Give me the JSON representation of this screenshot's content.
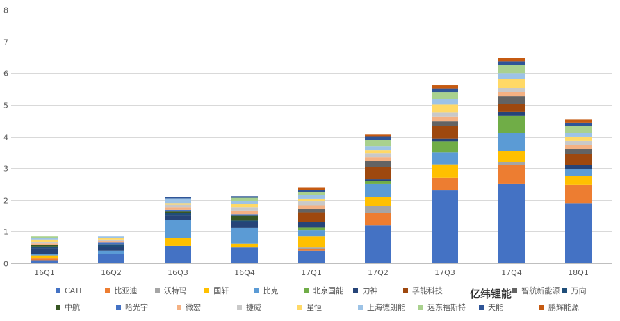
{
  "chart_data": {
    "type": "bar",
    "stacked": true,
    "categories": [
      "16Q1",
      "16Q2",
      "16Q3",
      "16Q4",
      "17Q1",
      "17Q2",
      "17Q3",
      "17Q4",
      "18Q1"
    ],
    "ylim": [
      0,
      8
    ],
    "yticks": [
      0,
      1,
      2,
      3,
      4,
      5,
      6,
      7,
      8
    ],
    "grid": true,
    "legend_position": "bottom",
    "series": [
      {
        "name": "CATL",
        "color": "#4472C4",
        "values": [
          0.1,
          0.3,
          0.55,
          0.5,
          0.4,
          1.2,
          2.3,
          2.5,
          1.9
        ]
      },
      {
        "name": "比亚迪",
        "color": "#ED7D31",
        "values": [
          0.05,
          0.0,
          0.0,
          0.0,
          0.05,
          0.4,
          0.4,
          0.6,
          0.58
        ]
      },
      {
        "name": "沃特玛",
        "color": "#A5A5A5",
        "values": [
          0.0,
          0.0,
          0.0,
          0.0,
          0.05,
          0.2,
          0.0,
          0.1,
          0.0
        ]
      },
      {
        "name": "国轩",
        "color": "#FFC000",
        "values": [
          0.1,
          0.0,
          0.26,
          0.12,
          0.35,
          0.3,
          0.42,
          0.35,
          0.28
        ]
      },
      {
        "name": "比克",
        "color": "#5B9BD5",
        "values": [
          0.05,
          0.1,
          0.55,
          0.5,
          0.2,
          0.4,
          0.38,
          0.55,
          0.22
        ]
      },
      {
        "name": "北京国能",
        "color": "#70AD47",
        "values": [
          0.0,
          0.0,
          0.0,
          0.0,
          0.08,
          0.1,
          0.35,
          0.55,
          0.0
        ]
      },
      {
        "name": "力神",
        "color": "#264478",
        "values": [
          0.18,
          0.12,
          0.15,
          0.18,
          0.18,
          0.05,
          0.08,
          0.13,
          0.13
        ]
      },
      {
        "name": "孚能科技",
        "color": "#9E480E",
        "values": [
          0.0,
          0.0,
          0.0,
          0.0,
          0.3,
          0.38,
          0.4,
          0.25,
          0.35
        ]
      },
      {
        "name": "智航新能源",
        "color": "#636363",
        "values": [
          0.0,
          0.0,
          0.0,
          0.0,
          0.1,
          0.2,
          0.16,
          0.25,
          0.15
        ]
      },
      {
        "name": "万向",
        "color": "#1F4E79",
        "values": [
          0.05,
          0.05,
          0.08,
          0.05,
          0.0,
          0.0,
          0.0,
          0.0,
          0.0
        ]
      },
      {
        "name": "中航",
        "color": "#375623",
        "values": [
          0.05,
          0.03,
          0.05,
          0.15,
          0.0,
          0.0,
          0.0,
          0.0,
          0.0
        ]
      },
      {
        "name": "哈光宇",
        "color": "#4472C4",
        "values": [
          0.0,
          0.05,
          0.05,
          0.05,
          0.0,
          0.0,
          0.0,
          0.0,
          0.0
        ]
      },
      {
        "name": "微宏",
        "color": "#F4B183",
        "values": [
          0.05,
          0.05,
          0.08,
          0.12,
          0.12,
          0.12,
          0.14,
          0.13,
          0.13
        ]
      },
      {
        "name": "捷威",
        "color": "#C9C9C9",
        "values": [
          0.05,
          0.05,
          0.08,
          0.1,
          0.12,
          0.13,
          0.14,
          0.12,
          0.12
        ]
      },
      {
        "name": "星恒",
        "color": "#FFD966",
        "values": [
          0.07,
          0.05,
          0.05,
          0.1,
          0.09,
          0.09,
          0.24,
          0.3,
          0.13
        ]
      },
      {
        "name": "上海德朗能",
        "color": "#9DC3E6",
        "values": [
          0.05,
          0.05,
          0.15,
          0.1,
          0.11,
          0.13,
          0.18,
          0.17,
          0.13
        ]
      },
      {
        "name": "远东福斯特",
        "color": "#A9D18E",
        "values": [
          0.05,
          0.0,
          0.0,
          0.1,
          0.09,
          0.19,
          0.2,
          0.25,
          0.21
        ]
      },
      {
        "name": "天能",
        "color": "#2F5597",
        "values": [
          0.0,
          0.0,
          0.05,
          0.05,
          0.08,
          0.11,
          0.12,
          0.12,
          0.1
        ]
      },
      {
        "name": "鹏辉能源",
        "color": "#C55A11",
        "values": [
          0.0,
          0.0,
          0.0,
          0.0,
          0.08,
          0.07,
          0.1,
          0.1,
          0.12
        ]
      }
    ]
  },
  "watermark": "亿纬锂能"
}
